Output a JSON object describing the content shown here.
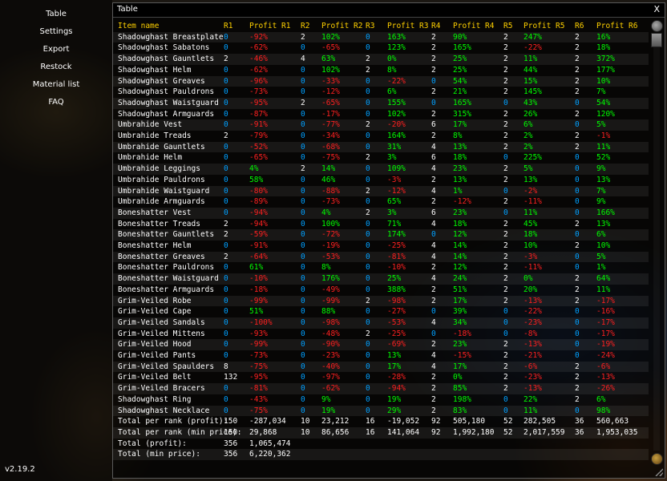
{
  "app": {
    "version": "v2.19.2"
  },
  "sidebar": {
    "items": [
      {
        "label": "Table"
      },
      {
        "label": "Settings"
      },
      {
        "label": "Export"
      },
      {
        "label": "Restock"
      },
      {
        "label": "Material list"
      },
      {
        "label": "FAQ"
      }
    ]
  },
  "window": {
    "title": "Table",
    "close_label": "X"
  },
  "table": {
    "headers": [
      "Item name",
      "R1",
      "Profit R1",
      "R2",
      "Profit R2",
      "R3",
      "Profit R3",
      "R4",
      "Profit R4",
      "R5",
      "Profit R5",
      "R6",
      "Profit R6"
    ],
    "rows": [
      [
        "Shadowghast Breastplate",
        "0",
        "-92%",
        "2",
        "102%",
        "0",
        "163%",
        "2",
        "90%",
        "2",
        "247%",
        "2",
        "16%"
      ],
      [
        "Shadowghast Sabatons",
        "0",
        "-62%",
        "0",
        "-65%",
        "0",
        "123%",
        "2",
        "165%",
        "2",
        "-22%",
        "2",
        "18%"
      ],
      [
        "Shadowghast Gauntlets",
        "2",
        "-46%",
        "4",
        "63%",
        "2",
        "0%",
        "2",
        "25%",
        "2",
        "11%",
        "2",
        "372%"
      ],
      [
        "Shadowghast Helm",
        "0",
        "-62%",
        "0",
        "102%",
        "2",
        "8%",
        "2",
        "25%",
        "2",
        "44%",
        "2",
        "177%"
      ],
      [
        "Shadowghast Greaves",
        "0",
        "-96%",
        "0",
        "-33%",
        "0",
        "-22%",
        "0",
        "54%",
        "2",
        "15%",
        "2",
        "10%"
      ],
      [
        "Shadowghast Pauldrons",
        "0",
        "-73%",
        "0",
        "-12%",
        "0",
        "6%",
        "2",
        "21%",
        "2",
        "145%",
        "2",
        "7%"
      ],
      [
        "Shadowghast Waistguard",
        "0",
        "-95%",
        "2",
        "-65%",
        "0",
        "155%",
        "0",
        "165%",
        "0",
        "43%",
        "0",
        "54%"
      ],
      [
        "Shadowghast Armguards",
        "0",
        "-87%",
        "0",
        "-17%",
        "0",
        "102%",
        "2",
        "315%",
        "2",
        "26%",
        "2",
        "120%"
      ],
      [
        "Umbrahide Vest",
        "0",
        "-91%",
        "0",
        "-77%",
        "2",
        "-20%",
        "6",
        "17%",
        "2",
        "6%",
        "0",
        "5%"
      ],
      [
        "Umbrahide Treads",
        "2",
        "-79%",
        "0",
        "-34%",
        "0",
        "164%",
        "2",
        "8%",
        "2",
        "2%",
        "2",
        "-1%"
      ],
      [
        "Umbrahide Gauntlets",
        "0",
        "-52%",
        "0",
        "-68%",
        "0",
        "31%",
        "4",
        "13%",
        "2",
        "2%",
        "2",
        "11%"
      ],
      [
        "Umbrahide Helm",
        "0",
        "-65%",
        "0",
        "-75%",
        "2",
        "3%",
        "6",
        "18%",
        "0",
        "225%",
        "0",
        "52%"
      ],
      [
        "Umbrahide Leggings",
        "0",
        "4%",
        "2",
        "14%",
        "0",
        "109%",
        "4",
        "23%",
        "2",
        "5%",
        "0",
        "9%"
      ],
      [
        "Umbrahide Pauldrons",
        "0",
        "58%",
        "0",
        "46%",
        "0",
        "-3%",
        "2",
        "13%",
        "2",
        "13%",
        "0",
        "13%"
      ],
      [
        "Umbrahide Waistguard",
        "0",
        "-80%",
        "0",
        "-88%",
        "2",
        "-12%",
        "4",
        "1%",
        "0",
        "-2%",
        "0",
        "7%"
      ],
      [
        "Umbrahide Armguards",
        "0",
        "-89%",
        "0",
        "-73%",
        "0",
        "65%",
        "2",
        "-12%",
        "2",
        "-11%",
        "0",
        "9%"
      ],
      [
        "Boneshatter Vest",
        "0",
        "-94%",
        "0",
        "4%",
        "2",
        "3%",
        "6",
        "23%",
        "0",
        "11%",
        "0",
        "166%"
      ],
      [
        "Boneshatter Treads",
        "2",
        "-94%",
        "0",
        "100%",
        "0",
        "71%",
        "4",
        "18%",
        "2",
        "45%",
        "2",
        "13%"
      ],
      [
        "Boneshatter Gauntlets",
        "2",
        "-59%",
        "0",
        "-72%",
        "0",
        "174%",
        "0",
        "12%",
        "2",
        "18%",
        "0",
        "6%"
      ],
      [
        "Boneshatter Helm",
        "0",
        "-91%",
        "0",
        "-19%",
        "0",
        "-25%",
        "4",
        "14%",
        "2",
        "10%",
        "2",
        "10%"
      ],
      [
        "Boneshatter Greaves",
        "2",
        "-64%",
        "0",
        "-53%",
        "0",
        "-81%",
        "4",
        "14%",
        "2",
        "-3%",
        "0",
        "5%"
      ],
      [
        "Boneshatter Pauldrons",
        "0",
        "61%",
        "0",
        "8%",
        "0",
        "-10%",
        "2",
        "12%",
        "2",
        "-11%",
        "0",
        "1%"
      ],
      [
        "Boneshatter Waistguard",
        "0",
        "-10%",
        "0",
        "176%",
        "0",
        "25%",
        "4",
        "24%",
        "2",
        "0%",
        "2",
        "64%"
      ],
      [
        "Boneshatter Armguards",
        "0",
        "-18%",
        "0",
        "-49%",
        "0",
        "388%",
        "2",
        "51%",
        "2",
        "20%",
        "2",
        "11%"
      ],
      [
        "Grim-Veiled Robe",
        "0",
        "-99%",
        "0",
        "-99%",
        "2",
        "-98%",
        "2",
        "17%",
        "2",
        "-13%",
        "2",
        "-17%"
      ],
      [
        "Grim-Veiled Cape",
        "0",
        "51%",
        "0",
        "88%",
        "0",
        "-27%",
        "0",
        "39%",
        "0",
        "-22%",
        "0",
        "-16%"
      ],
      [
        "Grim-Veiled Sandals",
        "0",
        "-100%",
        "0",
        "-98%",
        "0",
        "-53%",
        "4",
        "34%",
        "0",
        "-23%",
        "0",
        "-17%"
      ],
      [
        "Grim-Veiled Mittens",
        "0",
        "-93%",
        "0",
        "-48%",
        "2",
        "-25%",
        "0",
        "-18%",
        "0",
        "-8%",
        "0",
        "-17%"
      ],
      [
        "Grim-Veiled Hood",
        "0",
        "-99%",
        "0",
        "-90%",
        "0",
        "-69%",
        "2",
        "23%",
        "2",
        "-13%",
        "0",
        "-19%"
      ],
      [
        "Grim-Veiled Pants",
        "0",
        "-73%",
        "0",
        "-23%",
        "0",
        "13%",
        "4",
        "-15%",
        "2",
        "-21%",
        "0",
        "-24%"
      ],
      [
        "Grim-Veiled Spaulders",
        "8",
        "-75%",
        "0",
        "-40%",
        "0",
        "17%",
        "4",
        "17%",
        "2",
        "-6%",
        "2",
        "-6%"
      ],
      [
        "Grim-Veiled Belt",
        "132",
        "-95%",
        "0",
        "-97%",
        "0",
        "-28%",
        "2",
        "0%",
        "2",
        "-23%",
        "2",
        "-13%"
      ],
      [
        "Grim-Veiled Bracers",
        "0",
        "-81%",
        "0",
        "-62%",
        "0",
        "-94%",
        "2",
        "85%",
        "2",
        "-13%",
        "2",
        "-26%"
      ],
      [
        "Shadowghast Ring",
        "0",
        "-43%",
        "0",
        "9%",
        "0",
        "19%",
        "2",
        "198%",
        "0",
        "22%",
        "2",
        "6%"
      ],
      [
        "Shadowghast Necklace",
        "0",
        "-75%",
        "0",
        "19%",
        "0",
        "29%",
        "2",
        "83%",
        "0",
        "11%",
        "0",
        "98%"
      ]
    ],
    "totals": [
      [
        "Total per rank (profit):",
        "150",
        "-287,034",
        "10",
        "23,212",
        "16",
        "-19,052",
        "92",
        "505,180",
        "52",
        "282,505",
        "36",
        "560,663"
      ],
      [
        "Total per rank (min price):",
        "150",
        "29,868",
        "10",
        "86,656",
        "16",
        "141,064",
        "92",
        "1,992,180",
        "52",
        "2,017,559",
        "36",
        "1,953,035"
      ],
      [
        "Total (profit):",
        "356",
        "1,065,474",
        "",
        "",
        "",
        "",
        "",
        "",
        "",
        "",
        "",
        ""
      ],
      [
        "Total (min price):",
        "356",
        "6,220,362",
        "",
        "",
        "",
        "",
        "",
        "",
        "",
        "",
        "",
        ""
      ]
    ]
  },
  "colors": {
    "header": "#ffd100",
    "positive": "#00ff00",
    "negative": "#ff2020",
    "zero_count": "#00a0ff",
    "neutral": "#ffffff"
  }
}
